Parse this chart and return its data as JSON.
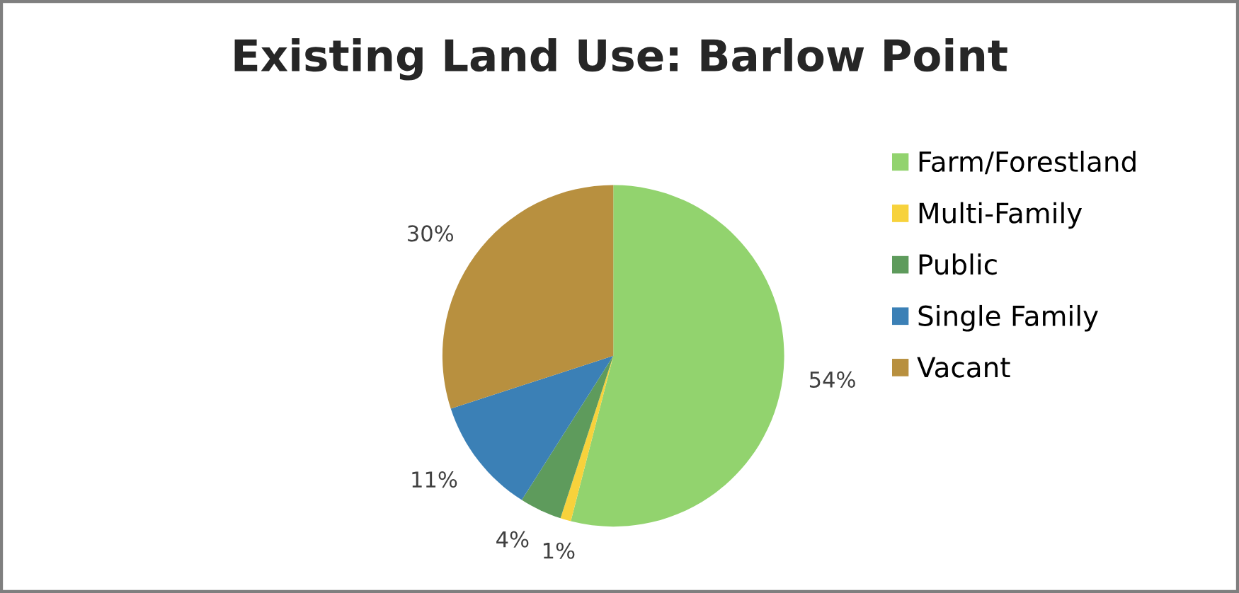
{
  "chart_data": {
    "type": "pie",
    "title": "Existing Land Use: Barlow Point",
    "categories": [
      "Farm/Forestland",
      "Multi-Family",
      "Public",
      "Single Family",
      "Vacant"
    ],
    "values": [
      54,
      1,
      4,
      11,
      30
    ],
    "colors": [
      "#92d36e",
      "#f7d23c",
      "#5e9b5c",
      "#3b80b6",
      "#b8903f"
    ],
    "value_labels": [
      "54%",
      "1%",
      "4%",
      "11%",
      "30%"
    ],
    "legend": "right"
  }
}
